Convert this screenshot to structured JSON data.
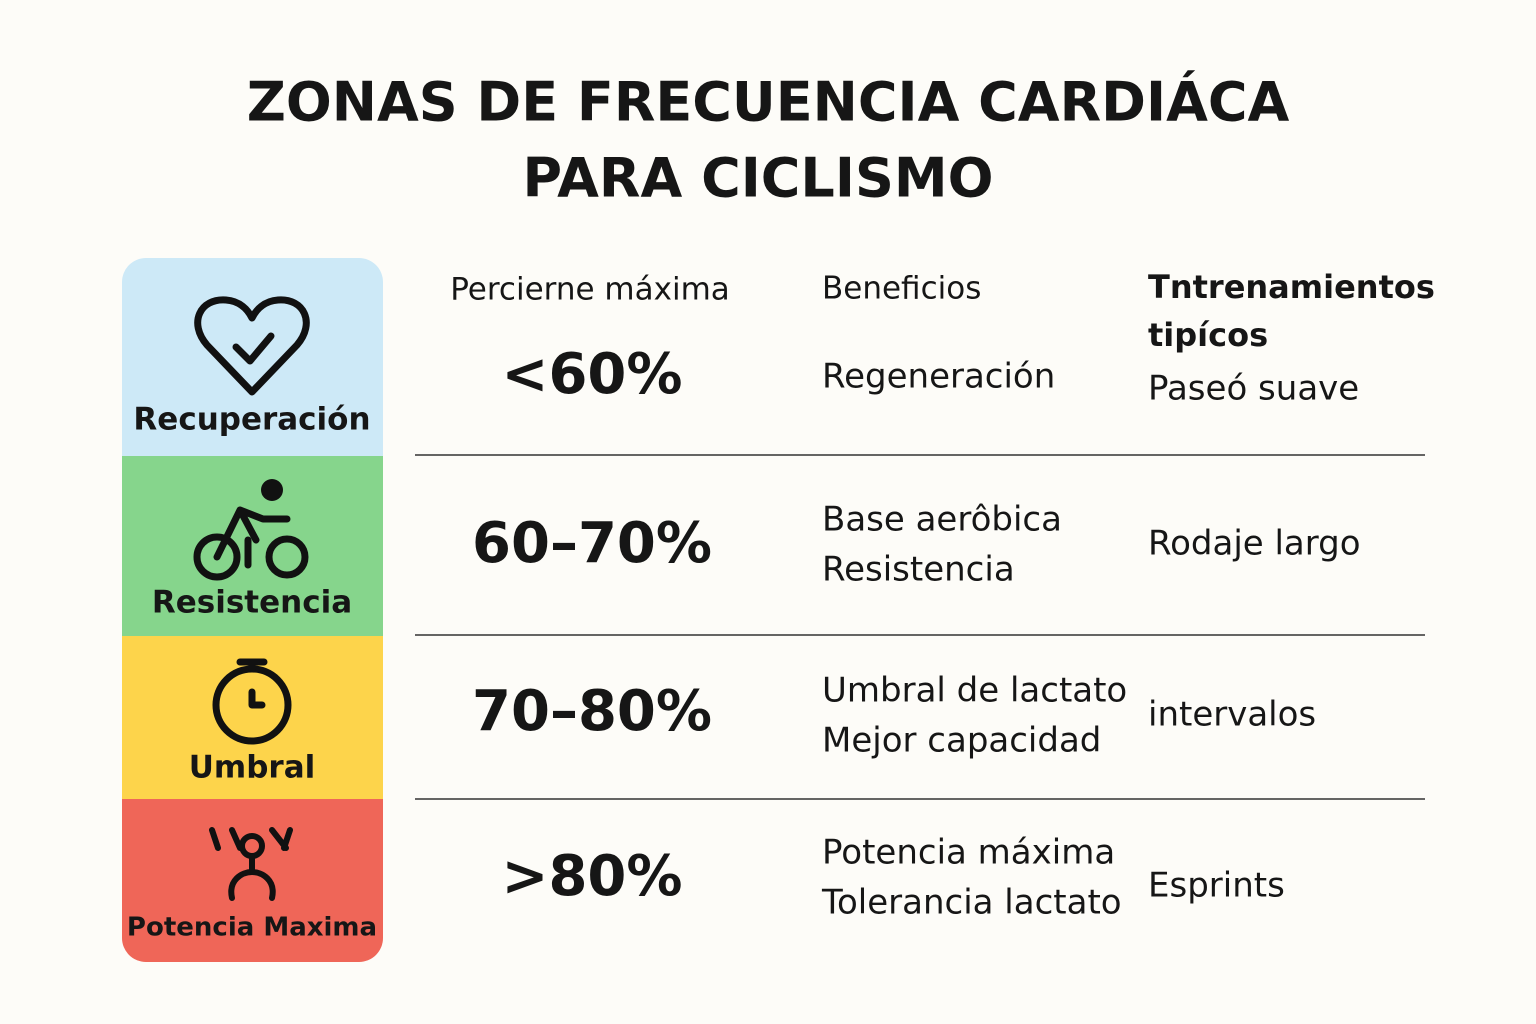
{
  "title": {
    "lines": [
      "ZONAS DE FRECUENCIA CARDIÁCA",
      "PARA CICLISMO"
    ]
  },
  "table": {
    "headers": {
      "percent": "Percierne máxima",
      "benefits": "Beneficios",
      "training": [
        "Tntrenamientos",
        "tipícos"
      ]
    },
    "rows": [
      {
        "zone": "Recuperación",
        "percent": "<60%",
        "benefits": [
          "Regeneración"
        ],
        "training": "Paseó suave"
      },
      {
        "zone": "Resistencia",
        "percent": "60–70%",
        "benefits": [
          "Base aerôbica",
          "Resistencia"
        ],
        "training": "Rodaje largo"
      },
      {
        "zone": "Umbral",
        "percent": "70–80%",
        "benefits": [
          "Umbral de lactato",
          "Mejor capacidad"
        ],
        "training": "intervalos"
      },
      {
        "zone": "Potencia Maxima",
        "percent": ">80%",
        "benefits": [
          "Potencia máxima",
          "Tolerancia lactato"
        ],
        "training": "Esprints"
      }
    ]
  }
}
